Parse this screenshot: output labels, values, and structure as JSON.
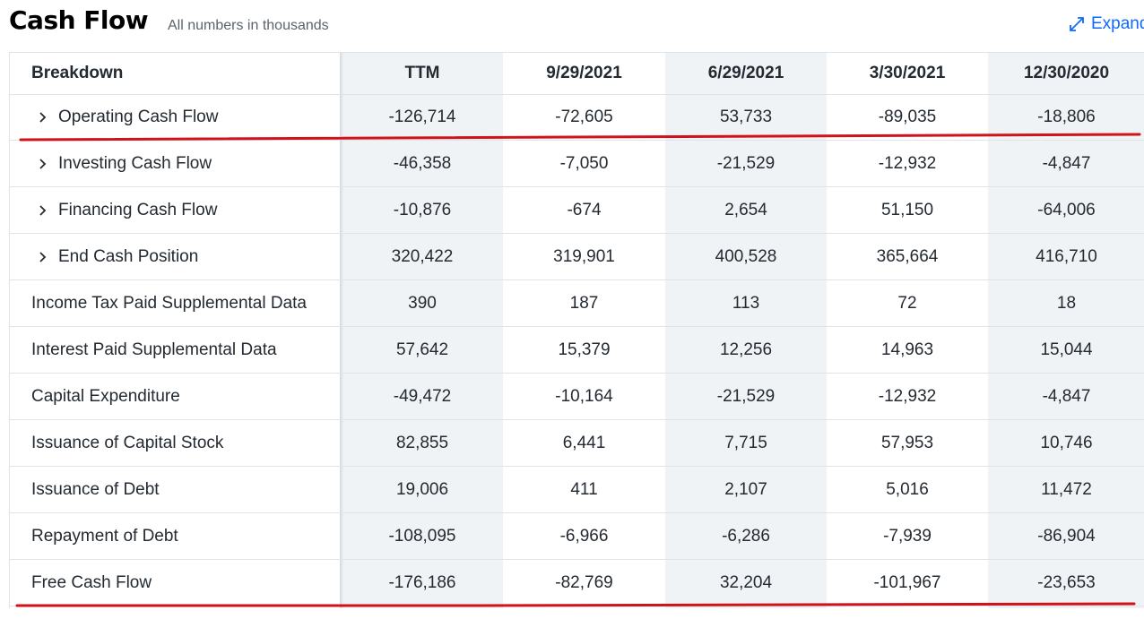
{
  "header": {
    "title": "Cash Flow",
    "subtitle": "All numbers in thousands",
    "expand_label": "Expand"
  },
  "table": {
    "breakdown_label": "Breakdown",
    "columns": [
      "TTM",
      "9/29/2021",
      "6/29/2021",
      "3/30/2021",
      "12/30/2020"
    ],
    "rows": [
      {
        "label": "Operating Cash Flow",
        "expandable": true,
        "values": [
          "-126,714",
          "-72,605",
          "53,733",
          "-89,035",
          "-18,806"
        ]
      },
      {
        "label": "Investing Cash Flow",
        "expandable": true,
        "values": [
          "-46,358",
          "-7,050",
          "-21,529",
          "-12,932",
          "-4,847"
        ]
      },
      {
        "label": "Financing Cash Flow",
        "expandable": true,
        "values": [
          "-10,876",
          "-674",
          "2,654",
          "51,150",
          "-64,006"
        ]
      },
      {
        "label": "End Cash Position",
        "expandable": true,
        "values": [
          "320,422",
          "319,901",
          "400,528",
          "365,664",
          "416,710"
        ]
      },
      {
        "label": "Income Tax Paid Supplemental Data",
        "expandable": false,
        "values": [
          "390",
          "187",
          "113",
          "72",
          "18"
        ]
      },
      {
        "label": "Interest Paid Supplemental Data",
        "expandable": false,
        "values": [
          "57,642",
          "15,379",
          "12,256",
          "14,963",
          "15,044"
        ]
      },
      {
        "label": "Capital Expenditure",
        "expandable": false,
        "values": [
          "-49,472",
          "-10,164",
          "-21,529",
          "-12,932",
          "-4,847"
        ]
      },
      {
        "label": "Issuance of Capital Stock",
        "expandable": false,
        "values": [
          "82,855",
          "6,441",
          "7,715",
          "57,953",
          "10,746"
        ]
      },
      {
        "label": "Issuance of Debt",
        "expandable": false,
        "values": [
          "19,006",
          "411",
          "2,107",
          "5,016",
          "11,472"
        ]
      },
      {
        "label": "Repayment of Debt",
        "expandable": false,
        "values": [
          "-108,095",
          "-6,966",
          "-6,286",
          "-7,939",
          "-86,904"
        ]
      },
      {
        "label": "Free Cash Flow",
        "expandable": false,
        "values": [
          "-176,186",
          "-82,769",
          "32,204",
          "-101,967",
          "-23,653"
        ]
      }
    ]
  },
  "colors": {
    "accent_link": "#0f69ff",
    "annotation_red": "#d0121b",
    "column_shade": "#f0f3f5"
  },
  "icons": {
    "expand": "expand-arrows-icon",
    "row_toggle": "chevron-right-icon"
  }
}
